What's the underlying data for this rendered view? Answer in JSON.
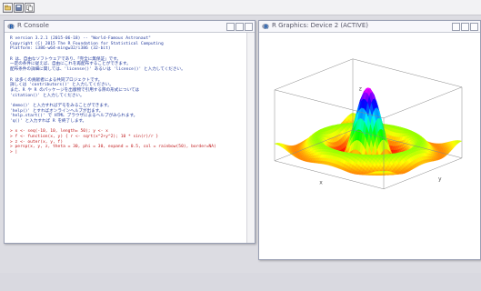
{
  "toolbar": {
    "buttons": [
      "open-icon",
      "save-icon",
      "copy-icon"
    ]
  },
  "console": {
    "title": "R Console",
    "lines": [
      {
        "t": "R version 3.2.1 (2015-06-18) -- \"World-Famous Astronaut\"",
        "k": "out"
      },
      {
        "t": "Copyright (C) 2015 The R Foundation for Statistical Computing",
        "k": "out"
      },
      {
        "t": "Platform: i386-w64-mingw32/i386 (32-bit)",
        "k": "out"
      },
      {
        "t": "",
        "k": "gap"
      },
      {
        "t": "R は、自由なソフトウェアであり、「完全に無保証」です。",
        "k": "out"
      },
      {
        "t": "一定の条件に従えば、自由にこれを再配布することができます。",
        "k": "out"
      },
      {
        "t": "配布条件の詳細に関しては、'license()' あるいは 'licence()' と入力してください。",
        "k": "out"
      },
      {
        "t": "",
        "k": "gap"
      },
      {
        "t": "R は多くの貢献者による共同プロジェクトです。",
        "k": "out"
      },
      {
        "t": "詳しくは 'contributors()' と入力してください。",
        "k": "out"
      },
      {
        "t": "また、R や R のパッケージを出版物で引用する際の形式については",
        "k": "out"
      },
      {
        "t": "'citation()' と入力してください。",
        "k": "out"
      },
      {
        "t": "",
        "k": "gap"
      },
      {
        "t": "'demo()' と入力すればデモをみることができます。",
        "k": "out"
      },
      {
        "t": "'help()' とすればオンラインヘルプが出ます。",
        "k": "out"
      },
      {
        "t": "'help.start()' で HTML ブラウザによるヘルプがみられます。",
        "k": "out"
      },
      {
        "t": "'q()' と入力すれば R を終了します。",
        "k": "out"
      },
      {
        "t": "",
        "k": "gap"
      },
      {
        "t": "> x <- seq(-10, 10, length= 50); y <- x",
        "k": "in"
      },
      {
        "t": "> f <- function(x, y) { r <- sqrt(x^2+y^2); 10 * sin(r)/r }",
        "k": "in"
      },
      {
        "t": "> z <- outer(x, y, f)",
        "k": "in"
      },
      {
        "t": "> persp(x, y, z, theta = 30, phi = 30, expand = 0.5, col = rainbow(50), border=NA)",
        "k": "in"
      },
      {
        "t": "> |",
        "k": "in"
      }
    ]
  },
  "graphics": {
    "title": "R Graphics: Device 2 (ACTIVE)",
    "plot": {
      "type": "persp",
      "xlabel": "x",
      "ylabel": "y",
      "zlabel": "z",
      "xrange": [
        -10,
        10
      ],
      "yrange": [
        -10,
        10
      ],
      "grid_points": 50,
      "palette": "rainbow",
      "border": "none"
    }
  }
}
